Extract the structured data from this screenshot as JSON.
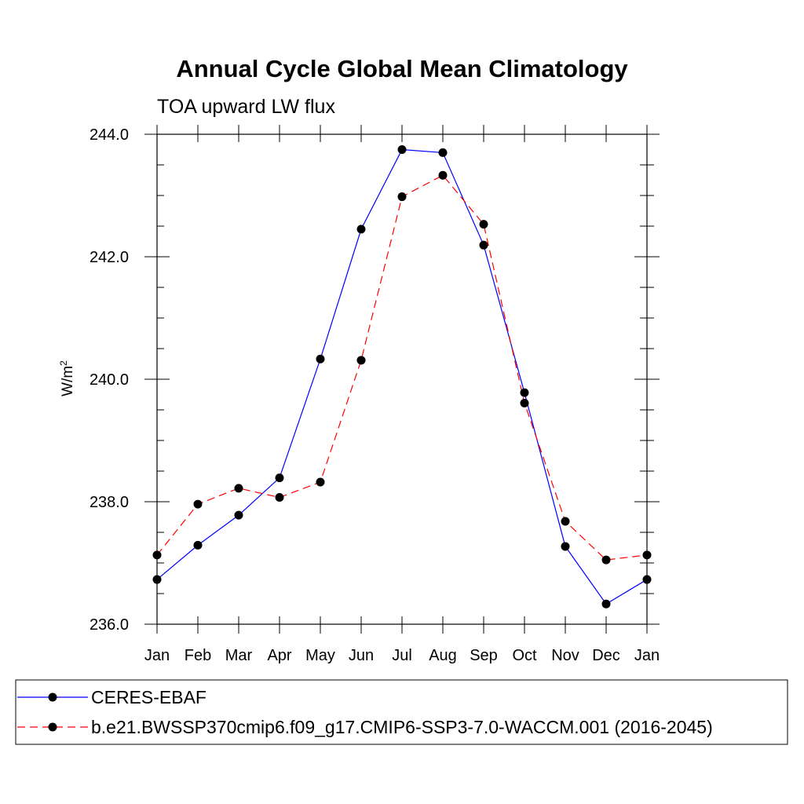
{
  "chart_data": {
    "type": "line",
    "title": "Annual Cycle Global Mean Climatology",
    "subtitle": "TOA upward LW flux",
    "ylabel": "W/m",
    "ylabel_superscript": "2",
    "xlabel": "",
    "categories": [
      "Jan",
      "Feb",
      "Mar",
      "Apr",
      "May",
      "Jun",
      "Jul",
      "Aug",
      "Sep",
      "Oct",
      "Nov",
      "Dec",
      "Jan"
    ],
    "ylim": [
      236.0,
      244.0
    ],
    "yticks": [
      "236.0",
      "238.0",
      "240.0",
      "242.0",
      "244.0"
    ],
    "grid": false,
    "legend_placement": "bottom",
    "series": [
      {
        "name": "CERES-EBAF",
        "color": "#0000ff",
        "dash": "solid",
        "marker": "filled-circle",
        "values": [
          236.73,
          237.29,
          237.78,
          238.39,
          240.33,
          242.45,
          243.75,
          243.7,
          242.19,
          239.78,
          237.27,
          236.33,
          236.73
        ]
      },
      {
        "name": "b.e21.BWSSP370cmip6.f09_g17.CMIP6-SSP3-7.0-WACCM.001 (2016-2045)",
        "color": "#ff0000",
        "dash": "dashed",
        "marker": "filled-circle",
        "values": [
          237.13,
          237.96,
          238.22,
          238.07,
          238.32,
          240.31,
          242.98,
          243.33,
          242.53,
          239.61,
          237.68,
          237.05,
          237.13
        ]
      }
    ]
  }
}
